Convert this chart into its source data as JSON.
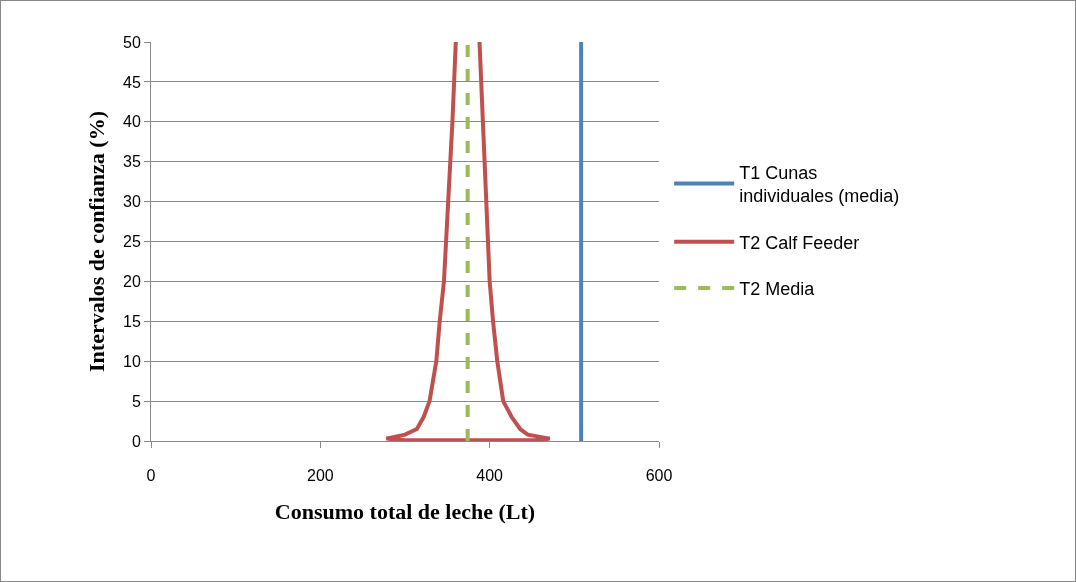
{
  "chart_data": {
    "type": "line",
    "xlabel": "Consumo total de leche (Lt)",
    "ylabel": "Intervalos de confianza (%)",
    "xlim": [
      0,
      600
    ],
    "xticks": [
      0,
      200,
      400,
      600
    ],
    "ylim": [
      0,
      50
    ],
    "yticks": [
      0,
      5,
      10,
      15,
      20,
      25,
      30,
      35,
      40,
      45,
      50
    ],
    "grid": "y",
    "legend": "right",
    "marker": "none",
    "series": [
      {
        "name": "T1 Cunas individuales (media)",
        "color": "#4f81bd",
        "line_style": "solid",
        "x": [
          508,
          508
        ],
        "values": [
          0,
          50
        ]
      },
      {
        "name": "T2 Calf Feeder",
        "color": "#c0504d",
        "line_style": "solid",
        "x": [
          360,
          356,
          351,
          346,
          341,
          337,
          329,
          322,
          314,
          300,
          278,
          300,
          380,
          440,
          455,
          471,
          445,
          436,
          426,
          416,
          409,
          404,
          400,
          396,
          392,
          388
        ],
        "values": [
          50,
          40,
          30,
          20,
          15,
          10,
          5,
          3,
          1.5,
          0.8,
          0.3,
          0.1,
          0.1,
          0.1,
          0.1,
          0.3,
          0.8,
          1.5,
          3,
          5,
          10,
          15,
          20,
          30,
          40,
          50
        ]
      },
      {
        "name": "T2 Media",
        "color": "#9bbb59",
        "line_style": "dashed",
        "x": [
          374,
          374
        ],
        "values": [
          0,
          50
        ]
      }
    ]
  }
}
